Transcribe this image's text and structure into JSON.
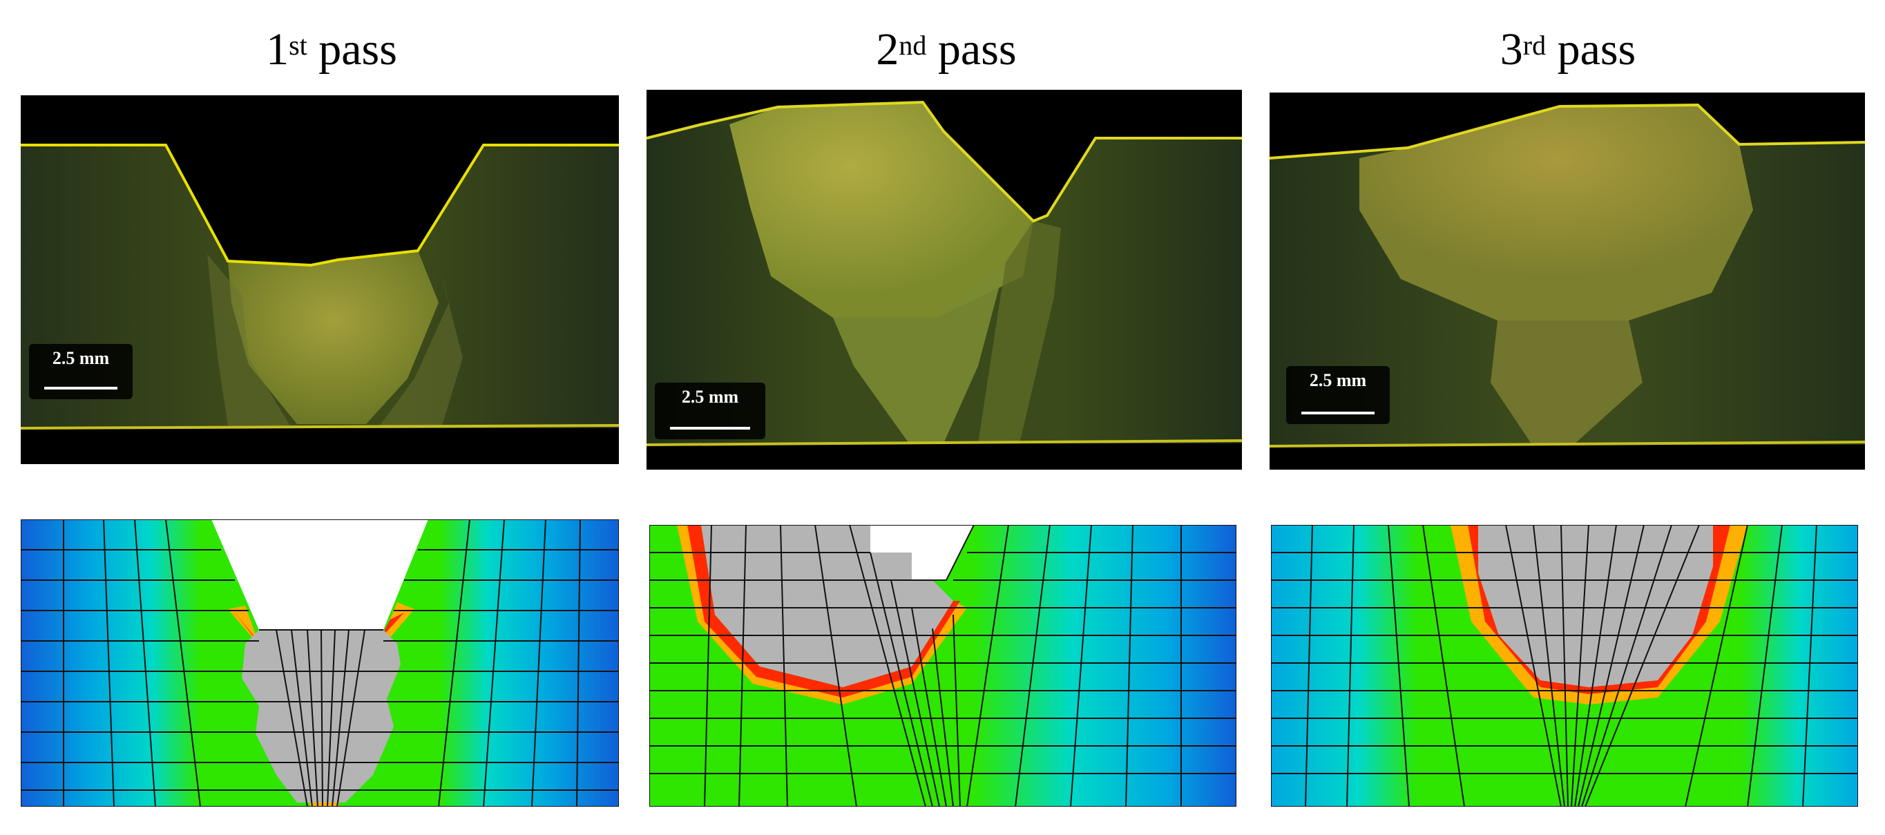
{
  "panels": [
    {
      "title_num": "1",
      "title_sup": "st",
      "title_word": "pass",
      "scale_label": "2.5 mm"
    },
    {
      "title_num": "2",
      "title_sup": "nd",
      "title_word": "pass",
      "scale_label": "2.5 mm"
    },
    {
      "title_num": "3",
      "title_sup": "rd",
      "title_word": "pass",
      "scale_label": "2.5 mm"
    }
  ],
  "colors": {
    "weld_metal_fem": "#b4b4b4",
    "contour_hot": "#ff2a00",
    "contour_warm": "#ffb000",
    "contour_mid": "#2ee600",
    "contour_cool": "#00d8c8",
    "contour_cold": "#1060d8",
    "micro_base": "#2c3b12",
    "micro_weld": "#8f9a34",
    "fusion_line": "#e8e000"
  }
}
